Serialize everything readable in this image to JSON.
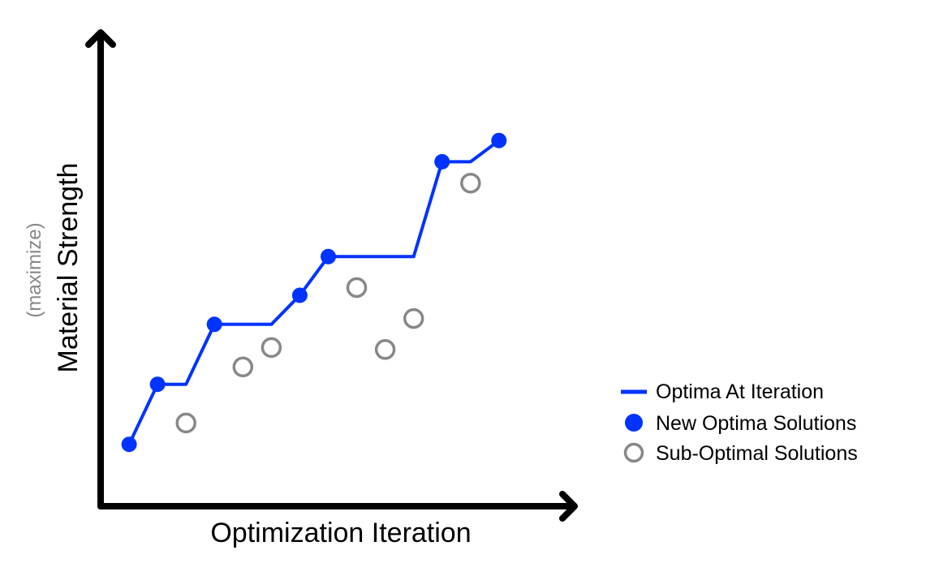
{
  "chart_data": {
    "type": "scatter",
    "xlabel": "Optimization Iteration",
    "ylabel": "Material Strength",
    "ylabel_note": "(maximize)",
    "axis_ticks": false,
    "grid": false,
    "legend_position": "right",
    "colors": {
      "optima": "#0033ff",
      "sub_optimal": "#888888",
      "axes": "#000000"
    },
    "legend": {
      "line_label": "Optima At Iteration",
      "optima_label": "New Optima Solutions",
      "sub_optimal_label": "Sub-Optimal Solutions"
    },
    "series": [
      {
        "name": "New Optima Solutions",
        "marker": "filled-circle",
        "points": [
          {
            "x": 1,
            "y": 1.0
          },
          {
            "x": 2,
            "y": 4.1
          },
          {
            "x": 4,
            "y": 7.2
          },
          {
            "x": 7,
            "y": 8.7
          },
          {
            "x": 8,
            "y": 10.7
          },
          {
            "x": 12,
            "y": 15.6
          },
          {
            "x": 14,
            "y": 16.7
          }
        ]
      },
      {
        "name": "Sub-Optimal Solutions",
        "marker": "open-circle",
        "points": [
          {
            "x": 3,
            "y": 2.1
          },
          {
            "x": 5,
            "y": 5.0
          },
          {
            "x": 6,
            "y": 6.0
          },
          {
            "x": 9,
            "y": 9.1
          },
          {
            "x": 10,
            "y": 5.9
          },
          {
            "x": 11,
            "y": 7.5
          },
          {
            "x": 13,
            "y": 14.5
          }
        ]
      },
      {
        "name": "Optima At Iteration",
        "marker": "line",
        "points": [
          {
            "x": 1,
            "y": 1.0
          },
          {
            "x": 2,
            "y": 4.1
          },
          {
            "x": 3,
            "y": 4.1
          },
          {
            "x": 4,
            "y": 7.2
          },
          {
            "x": 6,
            "y": 7.2
          },
          {
            "x": 7,
            "y": 8.7
          },
          {
            "x": 8,
            "y": 10.7
          },
          {
            "x": 11,
            "y": 10.7
          },
          {
            "x": 12,
            "y": 15.6
          },
          {
            "x": 13,
            "y": 15.6
          },
          {
            "x": 14,
            "y": 16.7
          }
        ]
      }
    ],
    "xlim": [
      0,
      16.6
    ],
    "ylim": [
      -2.2,
      22.2
    ]
  }
}
